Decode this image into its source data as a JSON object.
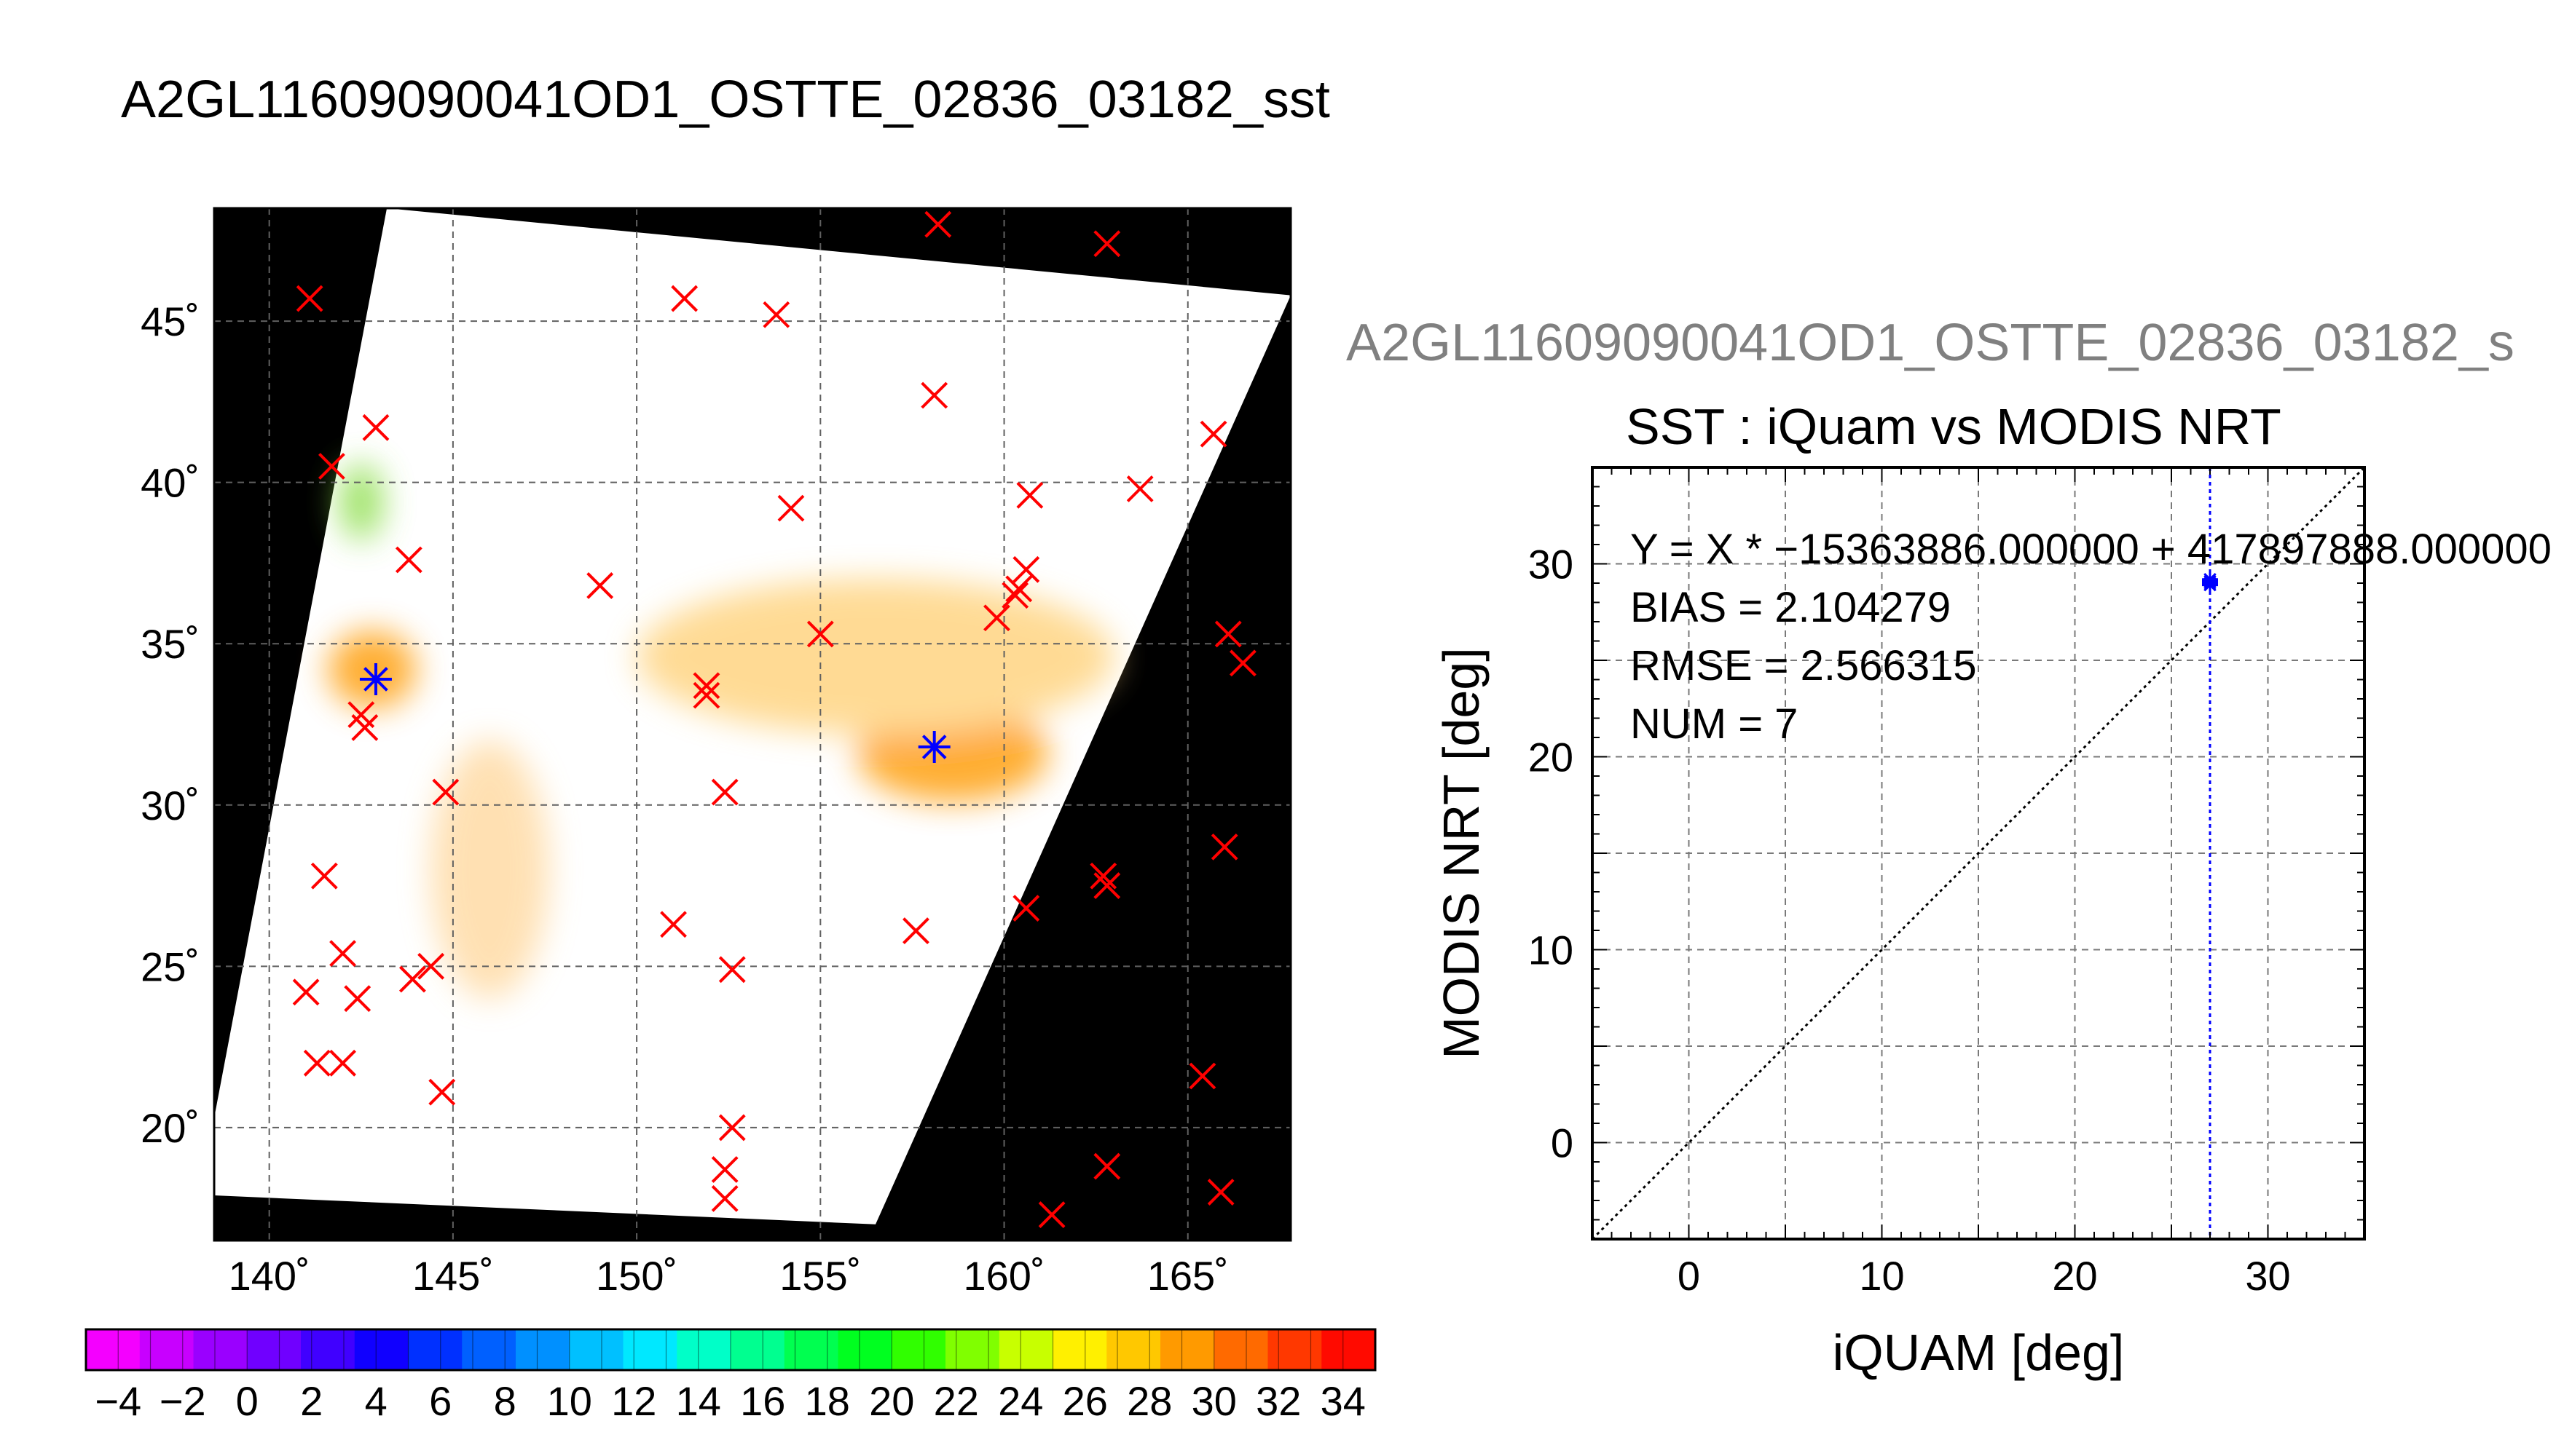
{
  "page_title": "A2GL11609090041OD1_OSTTE_02836_03182_sst",
  "chart_data": [
    {
      "type": "map",
      "title": "A2GL11609090041OD1_OSTTE_02836_03182_sst",
      "lon_range": [
        138.5,
        167.8
      ],
      "lat_range": [
        16.5,
        48.5
      ],
      "lon_ticks": [
        140,
        145,
        150,
        155,
        160,
        165
      ],
      "lon_tick_labels": [
        "140˚",
        "145˚",
        "150˚",
        "155˚",
        "160˚",
        "165˚"
      ],
      "lat_ticks": [
        20,
        25,
        30,
        35,
        40,
        45
      ],
      "lat_tick_labels": [
        "20˚",
        "25˚",
        "30˚",
        "35˚",
        "40˚",
        "45˚"
      ],
      "grid": true,
      "background_color": "#000000",
      "swath_color": "#ffffff",
      "swath_corners_lonlat": [
        [
          143.2,
          48.5
        ],
        [
          167.8,
          45.8
        ],
        [
          156.5,
          17.0
        ],
        [
          138.5,
          17.9
        ],
        [
          138.5,
          20.3
        ]
      ],
      "warm_patches": [
        {
          "lon": 158.6,
          "lat": 31.6,
          "rx": 2.6,
          "ry": 1.5,
          "color": "#ff9a00"
        },
        {
          "lon": 142.8,
          "lat": 34.2,
          "rx": 1.2,
          "ry": 1.2,
          "color": "#ff9a00"
        },
        {
          "lon": 156.5,
          "lat": 34.6,
          "rx": 6.5,
          "ry": 2.4,
          "color": "#ffd27a"
        },
        {
          "lon": 146.0,
          "lat": 28.0,
          "rx": 1.6,
          "ry": 4.0,
          "color": "#ffd9a0"
        },
        {
          "lon": 142.5,
          "lat": 39.4,
          "rx": 0.6,
          "ry": 1.2,
          "color": "#88dd44"
        }
      ],
      "iquam_buoys_x": [
        [
          141.1,
          45.7
        ],
        [
          141.7,
          40.5
        ],
        [
          142.9,
          41.7
        ],
        [
          143.8,
          37.6
        ],
        [
          142.5,
          32.8
        ],
        [
          142.6,
          32.4
        ],
        [
          141.5,
          27.8
        ],
        [
          142.0,
          25.4
        ],
        [
          141.0,
          24.2
        ],
        [
          142.4,
          24.0
        ],
        [
          141.3,
          22.0
        ],
        [
          142.0,
          22.0
        ],
        [
          143.9,
          24.6
        ],
        [
          144.4,
          25.0
        ],
        [
          144.8,
          30.4
        ],
        [
          144.7,
          21.1
        ],
        [
          151.3,
          45.7
        ],
        [
          153.8,
          45.2
        ],
        [
          149.0,
          36.8
        ],
        [
          154.2,
          39.2
        ],
        [
          151.9,
          33.7
        ],
        [
          151.9,
          33.4
        ],
        [
          155.0,
          35.3
        ],
        [
          152.4,
          30.4
        ],
        [
          151.0,
          26.3
        ],
        [
          152.6,
          24.9
        ],
        [
          152.6,
          20.0
        ],
        [
          152.4,
          18.7
        ],
        [
          152.4,
          17.8
        ],
        [
          157.6,
          26.1
        ],
        [
          158.2,
          48.0
        ],
        [
          158.1,
          42.7
        ],
        [
          160.7,
          39.6
        ],
        [
          160.6,
          37.3
        ],
        [
          160.4,
          36.7
        ],
        [
          160.3,
          36.5
        ],
        [
          159.8,
          35.8
        ],
        [
          162.8,
          47.4
        ],
        [
          163.7,
          39.8
        ],
        [
          165.7,
          41.5
        ],
        [
          166.1,
          35.3
        ],
        [
          166.5,
          34.4
        ],
        [
          166.0,
          28.7
        ],
        [
          160.6,
          26.8
        ],
        [
          162.7,
          27.8
        ],
        [
          162.8,
          27.5
        ],
        [
          161.3,
          17.3
        ],
        [
          162.8,
          18.8
        ],
        [
          165.4,
          21.6
        ],
        [
          165.9,
          18.0
        ]
      ],
      "matched_points_star": [
        [
          142.9,
          33.9
        ],
        [
          158.1,
          31.8
        ]
      ],
      "colorbar": {
        "min": -5,
        "max": 35,
        "step": 1,
        "tick_labels": [
          "−4",
          "−2",
          "0",
          "2",
          "4",
          "6",
          "8",
          "10",
          "12",
          "14",
          "16",
          "18",
          "20",
          "22",
          "24",
          "26",
          "28",
          "30",
          "32",
          "34"
        ],
        "tick_values": [
          -4,
          -2,
          0,
          2,
          4,
          6,
          8,
          10,
          12,
          14,
          16,
          18,
          20,
          22,
          24,
          26,
          28,
          30,
          32,
          34
        ],
        "colors": [
          "#f400ff",
          "#c800ff",
          "#9a00ff",
          "#7000ff",
          "#4000ff",
          "#1000ff",
          "#0030ff",
          "#0060ff",
          "#0090ff",
          "#00c0ff",
          "#00e8ff",
          "#00ffc8",
          "#00ff90",
          "#00ff50",
          "#00ff20",
          "#30ff00",
          "#80ff00",
          "#c8ff00",
          "#fff000",
          "#ffc800",
          "#ff9a00",
          "#ff6a00",
          "#ff3800",
          "#ff0a00"
        ]
      }
    },
    {
      "type": "scatter",
      "filename_label": "A2GL11609090041OD1_OSTTE_02836_03182_s",
      "title": "SST : iQuam vs MODIS NRT",
      "xlabel": "iQUAM [deg]",
      "ylabel": "MODIS NRT [deg]",
      "xlim": [
        -5,
        35
      ],
      "ylim": [
        -5,
        35
      ],
      "xticks": [
        0,
        10,
        20,
        30
      ],
      "yticks": [
        0,
        10,
        20,
        30
      ],
      "grid_step": 5,
      "identity_line": true,
      "vertical_line_x": 27.0,
      "points": [
        [
          27.0,
          29.2
        ],
        [
          27.0,
          29.0
        ],
        [
          27.0,
          29.1
        ],
        [
          27.0,
          28.9
        ]
      ],
      "stats": {
        "fit": "Y = X * −15363886.000000 + 417897888.000000",
        "bias": "BIAS = 2.104279",
        "rmse": "RMSE = 2.566315",
        "num": "NUM = 7"
      }
    }
  ]
}
